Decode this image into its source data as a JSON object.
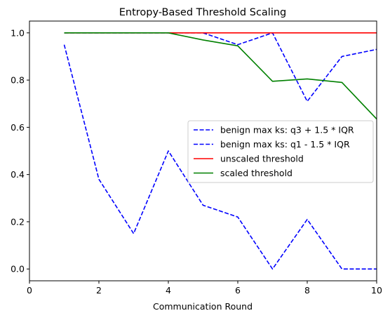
{
  "chart_data": {
    "type": "line",
    "title": "Entropy-Based Threshold Scaling",
    "xlabel": "Communication Round",
    "ylabel": "",
    "xlim": [
      0,
      10
    ],
    "ylim": [
      -0.05,
      1.05
    ],
    "xticks": [
      0,
      2,
      4,
      6,
      8,
      10
    ],
    "yticks": [
      0.0,
      0.2,
      0.4,
      0.6,
      0.8,
      1.0
    ],
    "xtick_labels": [
      "0",
      "2",
      "4",
      "6",
      "8",
      "10"
    ],
    "ytick_labels": [
      "0.0",
      "0.2",
      "0.4",
      "0.6",
      "0.8",
      "1.0"
    ],
    "grid": false,
    "legend_position": "center-right",
    "series": [
      {
        "name": "benign max ks: q3 + 1.5 * IQR",
        "color": "#0000ff",
        "style": "dashed",
        "x": [
          1,
          2,
          3,
          4,
          5,
          6,
          7,
          8,
          9,
          10
        ],
        "y": [
          1.0,
          1.0,
          1.0,
          1.0,
          1.0,
          0.95,
          1.0,
          0.71,
          0.9,
          0.93
        ]
      },
      {
        "name": "benign max ks: q1 - 1.5 * IQR",
        "color": "#0000ff",
        "style": "dashed",
        "x": [
          1,
          2,
          3,
          4,
          5,
          6,
          7,
          8,
          9,
          10
        ],
        "y": [
          0.95,
          0.38,
          0.15,
          0.5,
          0.27,
          0.22,
          0.0,
          0.21,
          0.0,
          0.0
        ]
      },
      {
        "name": "unscaled threshold",
        "color": "#ff0000",
        "style": "solid",
        "x": [
          1,
          2,
          3,
          4,
          5,
          6,
          7,
          8,
          9,
          10
        ],
        "y": [
          1.0,
          1.0,
          1.0,
          1.0,
          1.0,
          1.0,
          1.0,
          1.0,
          1.0,
          1.0
        ]
      },
      {
        "name": "scaled threshold",
        "color": "#008000",
        "style": "solid",
        "x": [
          1,
          2,
          3,
          4,
          5,
          6,
          7,
          8,
          9,
          10
        ],
        "y": [
          1.0,
          1.0,
          1.0,
          1.0,
          0.97,
          0.945,
          0.795,
          0.805,
          0.79,
          0.635
        ]
      }
    ]
  }
}
